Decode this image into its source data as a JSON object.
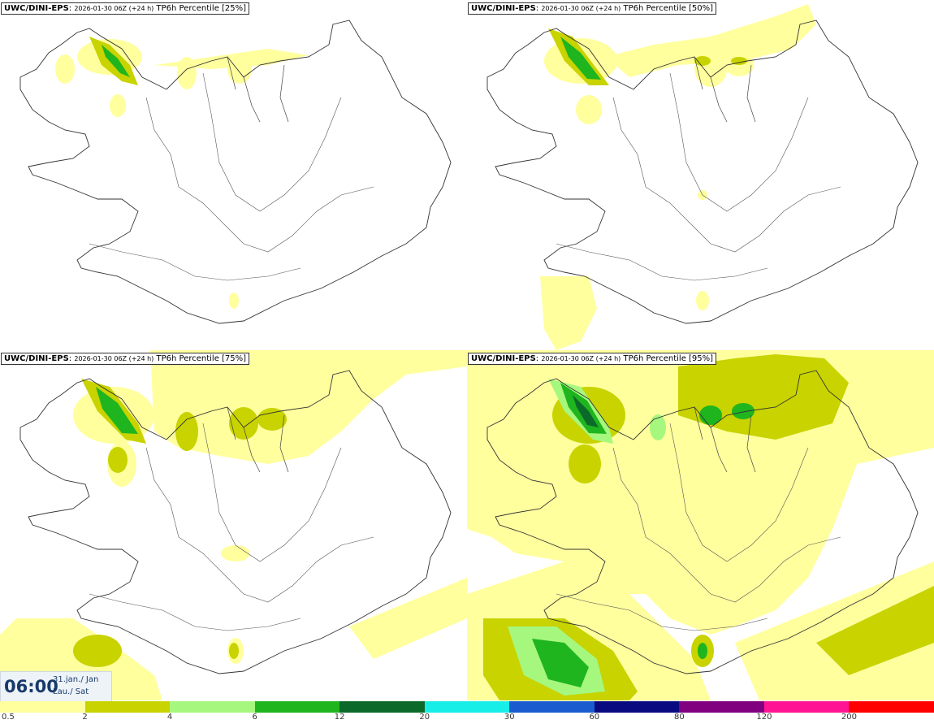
{
  "panels": [
    {
      "model": "UWC/DINI-EPS",
      "run": "2026-01-30 06Z (+24 h)",
      "product": "TP6h Percentile [25%]"
    },
    {
      "model": "UWC/DINI-EPS",
      "run": "2026-01-30 06Z (+24 h)",
      "product": "TP6h Percentile [50%]"
    },
    {
      "model": "UWC/DINI-EPS",
      "run": "2026-01-30 06Z (+24 h)",
      "product": "TP6h Percentile [75%]"
    },
    {
      "model": "UWC/DINI-EPS",
      "run": "2026-01-30 06Z (+24 h)",
      "product": "TP6h Percentile [95%]"
    }
  ],
  "valid_time": {
    "time": "06:00",
    "date": "31.jan./ Jan",
    "day": "Lau./ Sat"
  },
  "legend": {
    "labels": [
      "0.5",
      "2",
      "4",
      "6",
      "12",
      "20",
      "30",
      "60",
      "80",
      "120",
      "200"
    ],
    "colors": [
      "#ffff9e",
      "#c8d300",
      "#a6f77e",
      "#1fb51f",
      "#0b6a2a",
      "#18eee8",
      "#1a5ccf",
      "#0a0a80",
      "#800080",
      "#ff1493",
      "#ff0000"
    ]
  },
  "colors": {
    "light": "#ffff9e",
    "mid": "#c8d300",
    "pale_green": "#a6f77e",
    "green": "#1fb51f",
    "dark_green": "#0b6a2a",
    "coast": "#333333"
  }
}
